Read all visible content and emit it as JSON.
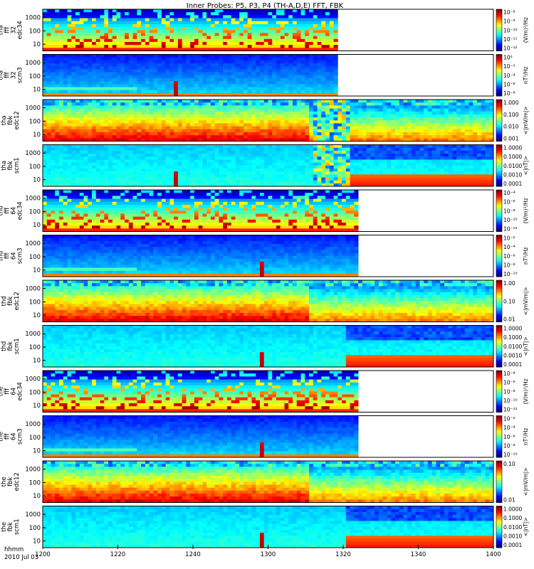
{
  "chart_data": {
    "type": "heatmap",
    "title": "Inner Probes: P5, P3, P4 (TH-A,D,E) FFT, FBK",
    "x": {
      "label_line1": "hhmm",
      "label_line2": "2010 Jul 03",
      "range": [
        1200,
        1400
      ],
      "ticks": [
        "1200",
        "1220",
        "1240",
        "1300",
        "1320",
        "1340",
        "1400"
      ],
      "tick_values_min": [
        0,
        20,
        40,
        60,
        80,
        100,
        120
      ]
    },
    "panels": [
      {
        "probe": "tha",
        "label": [
          "tha",
          "fff",
          "32",
          "edc34"
        ],
        "yticks": [
          "1000",
          "100",
          "10"
        ],
        "colorbar": {
          "label": "(V/m)²/Hz",
          "ticks": [
            "10⁻⁸",
            "10⁻⁹",
            "10⁻¹⁰",
            "10⁻¹¹",
            "10⁻¹²"
          ]
        },
        "kind": "fff_e",
        "data_end_min": 78
      },
      {
        "probe": "tha",
        "label": [
          "tha",
          "fff",
          "32",
          "scm3"
        ],
        "yticks": [
          "1000",
          "100",
          "10"
        ],
        "colorbar": {
          "label": "nT²/Hz",
          "ticks": [
            "10⁰",
            "10⁻²",
            "10⁻⁴",
            "10⁻⁶",
            "10⁻⁸"
          ]
        },
        "kind": "fff_b",
        "data_end_min": 78,
        "spike_min": 35
      },
      {
        "probe": "tha",
        "label": [
          "tha",
          "fbk",
          "edc12"
        ],
        "yticks": [
          "1000",
          "100",
          "10"
        ],
        "colorbar": {
          "label": "<|mV/m|>",
          "ticks": [
            "1.000",
            "0.100",
            "0.010",
            "0.001"
          ]
        },
        "kind": "fbk_e",
        "gap": [
          71,
          81
        ]
      },
      {
        "probe": "tha",
        "label": [
          "tha",
          "fbk",
          "scm1"
        ],
        "yticks": [
          "1000",
          "100",
          "10"
        ],
        "colorbar": {
          "label": "<|nT|>",
          "ticks": [
            "1.0000",
            "0.1000",
            "0.0100",
            "0.0010",
            "0.0001"
          ]
        },
        "kind": "fbk_b",
        "gap": [
          71,
          81
        ],
        "spike_min": 35
      },
      {
        "probe": "thd",
        "label": [
          "thd",
          "fff",
          "64",
          "edc34"
        ],
        "yticks": [
          "1000",
          "100",
          "10"
        ],
        "colorbar": {
          "label": "(V/m)²/Hz",
          "ticks": [
            "10⁻⁴",
            "10⁻⁶",
            "10⁻⁸",
            "10⁻¹⁰",
            "10⁻¹²"
          ]
        },
        "kind": "fff_e",
        "data_end_min": 84
      },
      {
        "probe": "thd",
        "label": [
          "thd",
          "fff",
          "64",
          "scm3"
        ],
        "yticks": [
          "1000",
          "100",
          "10"
        ],
        "colorbar": {
          "label": "nT²/Hz",
          "ticks": [
            "10⁻²",
            "10⁻⁴",
            "10⁻⁶",
            "10⁻⁸",
            "10⁻¹⁰"
          ]
        },
        "kind": "fff_b",
        "data_end_min": 84,
        "spike_min": 58
      },
      {
        "probe": "thd",
        "label": [
          "thd",
          "fbk",
          "edc12"
        ],
        "yticks": [
          "1000",
          "100",
          "10"
        ],
        "colorbar": {
          "label": "<|mV/m|>",
          "ticks": [
            "1.00",
            "0.10",
            "0.01"
          ]
        },
        "kind": "fbk_e"
      },
      {
        "probe": "thd",
        "label": [
          "thd",
          "fbk",
          "scm1"
        ],
        "yticks": [
          "1000",
          "100",
          "10"
        ],
        "colorbar": {
          "label": "<|nT|>",
          "ticks": [
            "1.0000",
            "0.1000",
            "0.0100",
            "0.0010",
            "0.0001"
          ]
        },
        "kind": "fbk_b",
        "spike_min": 58
      },
      {
        "probe": "the",
        "label": [
          "the",
          "fff",
          "64",
          "edc34"
        ],
        "yticks": [
          "1000",
          "100",
          "10"
        ],
        "colorbar": {
          "label": "(V/m)²/Hz",
          "ticks": [
            "10⁻⁴",
            "10⁻⁶",
            "10⁻⁸",
            "10⁻¹⁰",
            "10⁻¹²"
          ]
        },
        "kind": "fff_e",
        "data_end_min": 84
      },
      {
        "probe": "the",
        "label": [
          "the",
          "fff",
          "64",
          "scm3"
        ],
        "yticks": [
          "1000",
          "100",
          "10"
        ],
        "colorbar": {
          "label": "nT²/Hz",
          "ticks": [
            "10⁻²",
            "10⁻⁴",
            "10⁻⁶",
            "10⁻⁸",
            "10⁻¹⁰"
          ]
        },
        "kind": "fff_b",
        "data_end_min": 84,
        "spike_min": 58
      },
      {
        "probe": "the",
        "label": [
          "the",
          "fbk",
          "edc12"
        ],
        "yticks": [
          "1000",
          "100",
          "10"
        ],
        "colorbar": {
          "label": "<|mV/m|>",
          "ticks": [
            "0.10",
            "0.01"
          ]
        },
        "kind": "fbk_e"
      },
      {
        "probe": "the",
        "label": [
          "the",
          "fbk",
          "scm1"
        ],
        "yticks": [
          "1000",
          "100",
          "10"
        ],
        "colorbar": {
          "label": "<|nT|>",
          "ticks": [
            "1.0000",
            "0.1000",
            "0.0100",
            "0.0010",
            "0.0001"
          ]
        },
        "kind": "fbk_b",
        "spike_min": 58
      }
    ]
  }
}
